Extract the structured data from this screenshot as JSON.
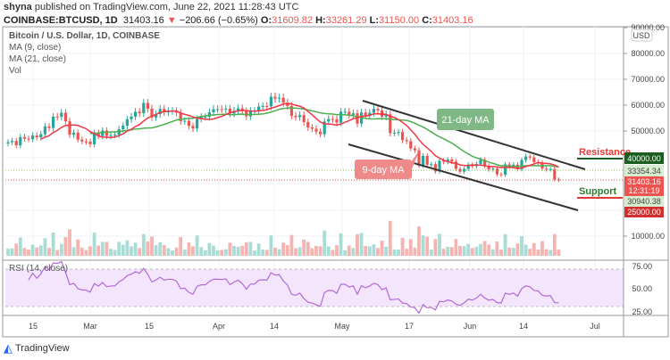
{
  "header": {
    "author": "shyna",
    "published": "published on TradingView.com, June 22, 2021 11:28:43 UTC",
    "symbol": "COINBASE:BTCUSD, 1D",
    "last": "31403.16",
    "change": "−206.66 (−0.65%)",
    "o_label": "O:",
    "open": "31609.82",
    "h_label": "H:",
    "high": "33261.29",
    "l_label": "L:",
    "low": "31150.00",
    "c_label": "C:",
    "close": "31403.16"
  },
  "legend": {
    "title": "Bitcoin / U.S. Dollar, 1D, COINBASE",
    "ma9": "MA (9, close)",
    "ma21": "MA (21, close)",
    "vol": "Vol",
    "rsi": "RSI (14, close)"
  },
  "annotations": {
    "ma21": "21-day MA",
    "ma9": "9-day MA",
    "resistance": "Resistance",
    "support": "Support"
  },
  "price_labels": {
    "currency": "USD",
    "resistance": "40000.00",
    "level1": "33354.34",
    "last": "31403.16",
    "countdown": "12:31:19",
    "level2": "30940.38",
    "support": "25000.00"
  },
  "colors": {
    "up": "#26a69a",
    "down": "#ef5350",
    "ma9": "#f23645",
    "ma21": "#4caf50",
    "rsi": "#b26ad8"
  },
  "brand": "TradingView",
  "chart_data": {
    "type": "candlestick",
    "start_date": "2021-02-08",
    "closes": [
      46.0,
      46.5,
      44.8,
      48.0,
      47.4,
      47.2,
      48.6,
      47.9,
      49.1,
      52.1,
      51.5,
      55.9,
      55.8,
      57.4,
      54.1,
      48.9,
      49.7,
      47.0,
      46.3,
      46.2,
      45.2,
      49.6,
      48.4,
      50.5,
      48.4,
      48.8,
      48.9,
      51.0,
      52.4,
      54.9,
      55.9,
      57.8,
      57.2,
      61.2,
      59.0,
      55.6,
      56.9,
      58.9,
      57.6,
      58.1,
      58.1,
      57.4,
      54.1,
      54.3,
      52.3,
      51.3,
      55.0,
      55.8,
      55.8,
      57.6,
      58.8,
      58.8,
      58.7,
      59.0,
      57.1,
      58.2,
      59.1,
      58.0,
      56.0,
      58.1,
      58.1,
      59.8,
      60.0,
      59.9,
      63.6,
      62.9,
      63.2,
      61.3,
      60.0,
      56.2,
      55.7,
      56.5,
      53.8,
      51.7,
      51.2,
      50.1,
      49.1,
      54.0,
      55.0,
      54.9,
      53.6,
      57.8,
      57.8,
      56.6,
      57.2,
      53.2,
      57.5,
      56.4,
      57.4,
      58.9,
      58.3,
      55.9,
      56.8,
      49.5,
      49.7,
      49.9,
      46.8,
      46.4,
      43.6,
      42.9,
      37.0,
      40.7,
      37.3,
      37.5,
      34.7,
      38.8,
      38.4,
      39.3,
      38.5,
      35.7,
      34.6,
      35.7,
      37.3,
      36.7,
      37.6,
      39.2,
      36.9,
      35.5,
      35.8,
      33.6,
      33.4,
      37.4,
      36.7,
      37.3,
      35.6,
      39.1,
      40.5,
      40.1,
      38.3,
      38.1,
      35.8,
      35.5,
      35.6,
      31.6,
      31.4
    ],
    "close_unit": "thousand USD",
    "y_ticks": [
      "90000.00",
      "80000.00",
      "70000.00",
      "60000.00",
      "50000.00",
      "10000.00"
    ],
    "rsi_ticks": [
      "75.00",
      "50.00",
      "25.00"
    ],
    "x_ticks": [
      "15",
      "Mar",
      "15",
      "Apr",
      "14",
      "May",
      "17",
      "Jun",
      "14",
      "Jul"
    ],
    "ylim": [
      0,
      90000
    ],
    "rsi_levels": [
      70,
      30
    ]
  }
}
